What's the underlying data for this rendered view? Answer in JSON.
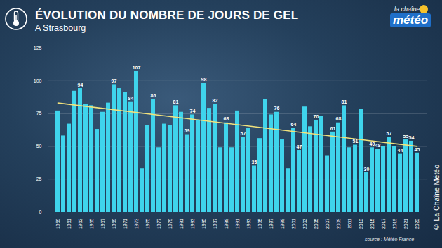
{
  "chart_data": {
    "type": "bar",
    "title": "ÉVOLUTION DU NOMBRE DE JOURS DE GEL",
    "subtitle": "A Strasbourg",
    "source": "source : Météo France",
    "copyright": "© La Chaîne Météo",
    "logo": [
      "la chaîne",
      "météo"
    ],
    "categories": [
      "1959",
      null,
      "1961",
      null,
      "1963",
      null,
      "1965",
      null,
      "1967",
      null,
      "1969",
      null,
      "1971",
      null,
      "1973",
      null,
      "1975",
      null,
      "1977",
      null,
      "1979",
      null,
      "1981",
      null,
      "1983",
      null,
      "1985",
      null,
      "1987",
      null,
      "1989",
      null,
      "1991",
      null,
      "1993",
      null,
      "1995",
      null,
      "1997",
      null,
      "1999",
      null,
      "2001",
      null,
      "2003",
      null,
      "2005",
      null,
      "2007",
      null,
      "2009",
      null,
      "2011",
      null,
      "2013",
      null,
      "2015",
      null,
      "2017",
      null,
      "2019",
      null,
      "2021",
      null,
      "2023"
    ],
    "values": [
      77,
      58,
      67,
      92,
      94,
      82,
      81,
      63,
      76,
      83,
      97,
      94,
      91,
      84,
      107,
      33,
      66,
      86,
      49,
      67,
      66,
      81,
      76,
      59,
      74,
      70,
      98,
      79,
      82,
      49,
      68,
      49,
      77,
      57,
      64,
      35,
      56,
      86,
      74,
      76,
      55,
      33,
      64,
      47,
      80,
      65,
      70,
      73,
      43,
      61,
      68,
      81,
      49,
      51,
      78,
      30,
      49,
      48,
      50,
      57,
      50,
      44,
      55,
      54,
      45
    ],
    "value_labels": [
      null,
      null,
      null,
      null,
      "94",
      null,
      null,
      null,
      null,
      null,
      "97",
      null,
      null,
      "84",
      "107",
      null,
      null,
      "86",
      null,
      null,
      null,
      "81",
      null,
      "59",
      "74",
      null,
      "98",
      null,
      "82",
      null,
      "68",
      null,
      null,
      "57",
      null,
      "35",
      null,
      null,
      null,
      "76",
      null,
      null,
      "64",
      "47",
      null,
      null,
      "70",
      null,
      null,
      "61",
      "68",
      "81",
      null,
      "51",
      null,
      "30",
      "49",
      "48",
      null,
      "57",
      null,
      "44",
      "55",
      "54",
      "45"
    ],
    "data_labels": true,
    "color": "#3fd4ec",
    "ylim": [
      0,
      125
    ],
    "yticks": [
      0,
      25,
      50,
      75,
      100,
      125
    ],
    "grid": true,
    "trend": {
      "categories": [
        "1959",
        "2023"
      ],
      "values": [
        83,
        50
      ],
      "color": "#f2e27c"
    }
  }
}
